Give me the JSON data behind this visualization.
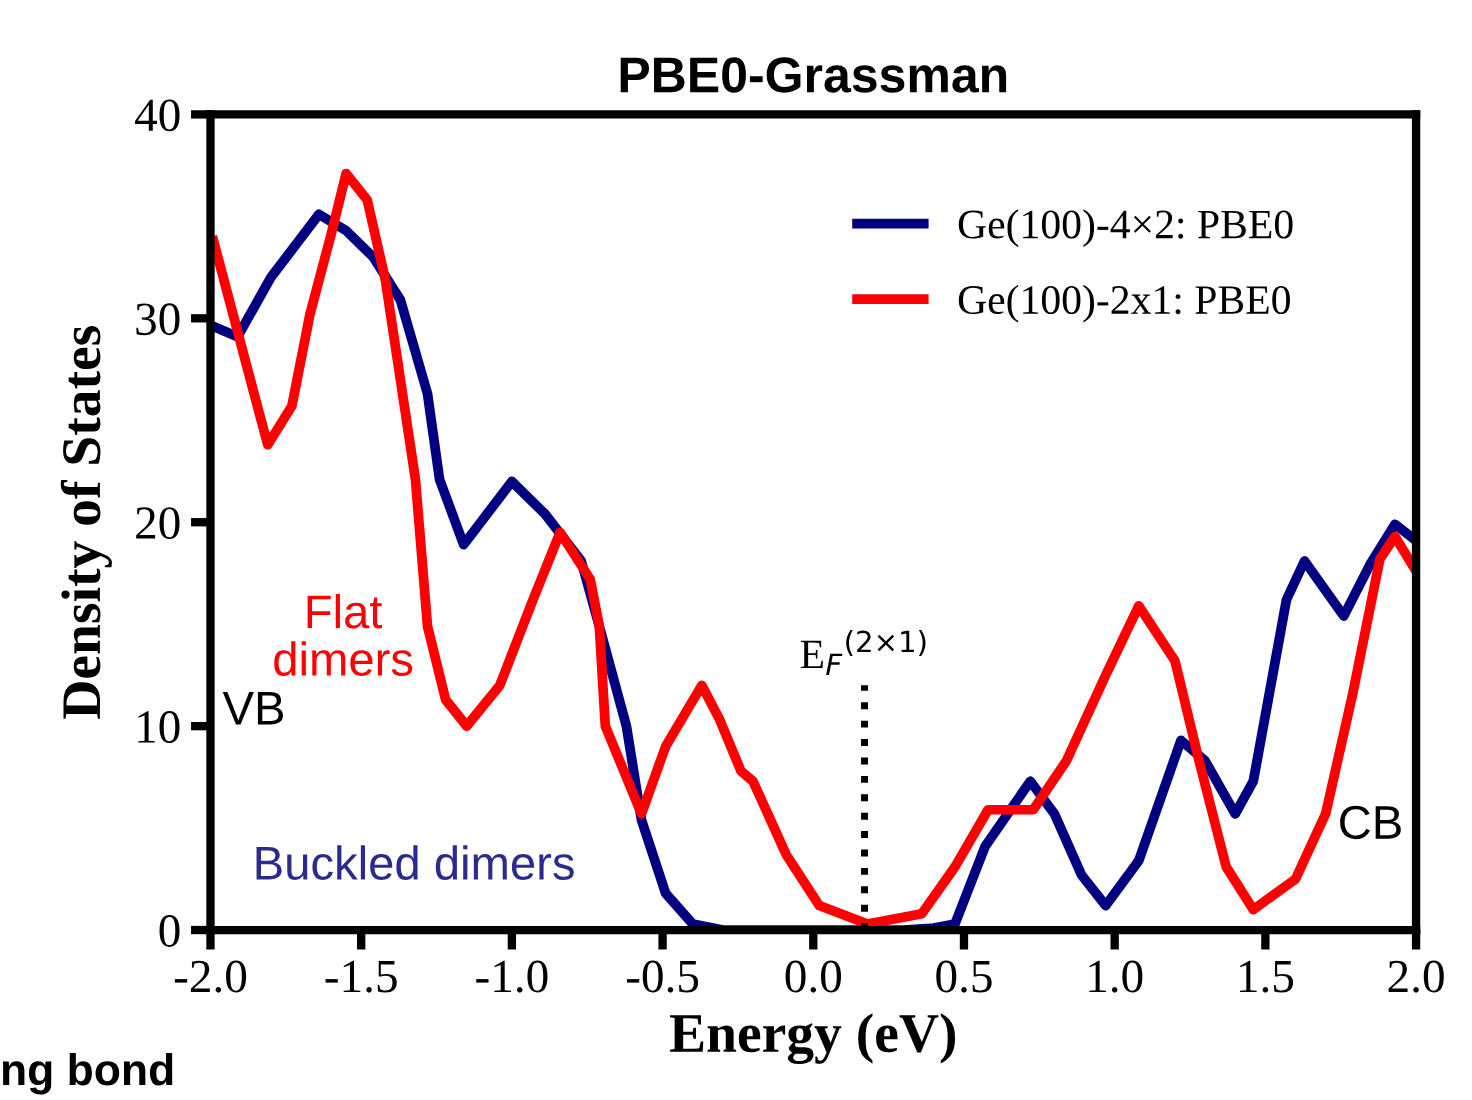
{
  "chart_data": {
    "type": "line",
    "title": "PBE0-Grassman",
    "xlabel": "Energy (eV)",
    "ylabel": "Density of States",
    "xlim": [
      -2.0,
      2.0
    ],
    "ylim": [
      0,
      40
    ],
    "xticks": [
      {
        "value": -2.0,
        "label": "-2.0"
      },
      {
        "value": -1.5,
        "label": "-1.5"
      },
      {
        "value": -1.0,
        "label": "-1.0"
      },
      {
        "value": -0.5,
        "label": "-0.5"
      },
      {
        "value": 0.0,
        "label": "0.0"
      },
      {
        "value": 0.5,
        "label": "0.5"
      },
      {
        "value": 1.0,
        "label": "1.0"
      },
      {
        "value": 1.5,
        "label": "1.5"
      },
      {
        "value": 2.0,
        "label": "2.0"
      }
    ],
    "yticks": [
      0,
      10,
      20,
      30,
      40
    ],
    "grid": false,
    "legend": "top right",
    "marker": "none",
    "line_style": "solid",
    "series": [
      {
        "name": "Ge(100)-4×2: PBE0",
        "color": "#000080",
        "x": [
          -1.99,
          -1.91,
          -1.8,
          -1.64,
          -1.55,
          -1.46,
          -1.37,
          -1.28,
          -1.24,
          -1.16,
          -1.0,
          -0.89,
          -0.77,
          -0.71,
          -0.62,
          -0.57,
          -0.49,
          -0.4,
          -0.3,
          0.0,
          0.3,
          0.4,
          0.47,
          0.57,
          0.72,
          0.8,
          0.89,
          0.97,
          1.08,
          1.22,
          1.3,
          1.4,
          1.46,
          1.57,
          1.63,
          1.76,
          1.85,
          1.93,
          2.0
        ],
        "values": [
          29.6,
          29.1,
          32.0,
          35.1,
          34.3,
          33.0,
          30.9,
          26.3,
          22.1,
          18.9,
          22.0,
          20.4,
          18.1,
          14.9,
          10.0,
          5.4,
          1.8,
          0.3,
          0.0,
          0.0,
          0.0,
          0.1,
          0.3,
          4.1,
          7.3,
          5.7,
          2.7,
          1.2,
          3.4,
          9.3,
          8.3,
          5.7,
          7.3,
          16.2,
          18.1,
          15.4,
          18.0,
          19.9,
          19.1
        ]
      },
      {
        "name": "Ge(100)-2x1: PBE0",
        "color": "#ff0000",
        "x": [
          -1.99,
          -1.92,
          -1.85,
          -1.81,
          -1.73,
          -1.67,
          -1.6,
          -1.55,
          -1.48,
          -1.42,
          -1.37,
          -1.32,
          -1.28,
          -1.22,
          -1.15,
          -1.04,
          -0.93,
          -0.84,
          -0.74,
          -0.71,
          -0.69,
          -0.57,
          -0.49,
          -0.37,
          -0.31,
          -0.24,
          -0.2,
          -0.09,
          0.02,
          0.18,
          0.36,
          0.47,
          0.58,
          0.73,
          0.84,
          0.97,
          1.08,
          1.2,
          1.28,
          1.37,
          1.46,
          1.6,
          1.7,
          1.79,
          1.88,
          1.93,
          2.0
        ],
        "values": [
          33.8,
          29.9,
          26.0,
          23.8,
          25.7,
          30.2,
          34.1,
          37.1,
          35.8,
          31.9,
          27.0,
          22.1,
          14.9,
          11.3,
          10.0,
          12.0,
          16.2,
          19.5,
          17.2,
          14.9,
          10.0,
          5.7,
          9.0,
          12.0,
          10.3,
          7.8,
          7.3,
          3.7,
          1.2,
          0.3,
          0.8,
          3.1,
          5.9,
          5.9,
          8.3,
          12.5,
          15.9,
          13.2,
          8.3,
          3.1,
          1.0,
          2.5,
          5.7,
          11.6,
          18.2,
          19.3,
          17.6
        ]
      }
    ],
    "ref_lines": [
      {
        "axis": "x",
        "value": 0.17,
        "label": "E$_{F}$$^{(2×1)}$",
        "color": "#000000",
        "line_style": "dotted"
      }
    ],
    "annotations": [
      "Flat\ndimers",
      "VB",
      "Buckled dimers",
      "CB",
      "ng bond"
    ]
  }
}
